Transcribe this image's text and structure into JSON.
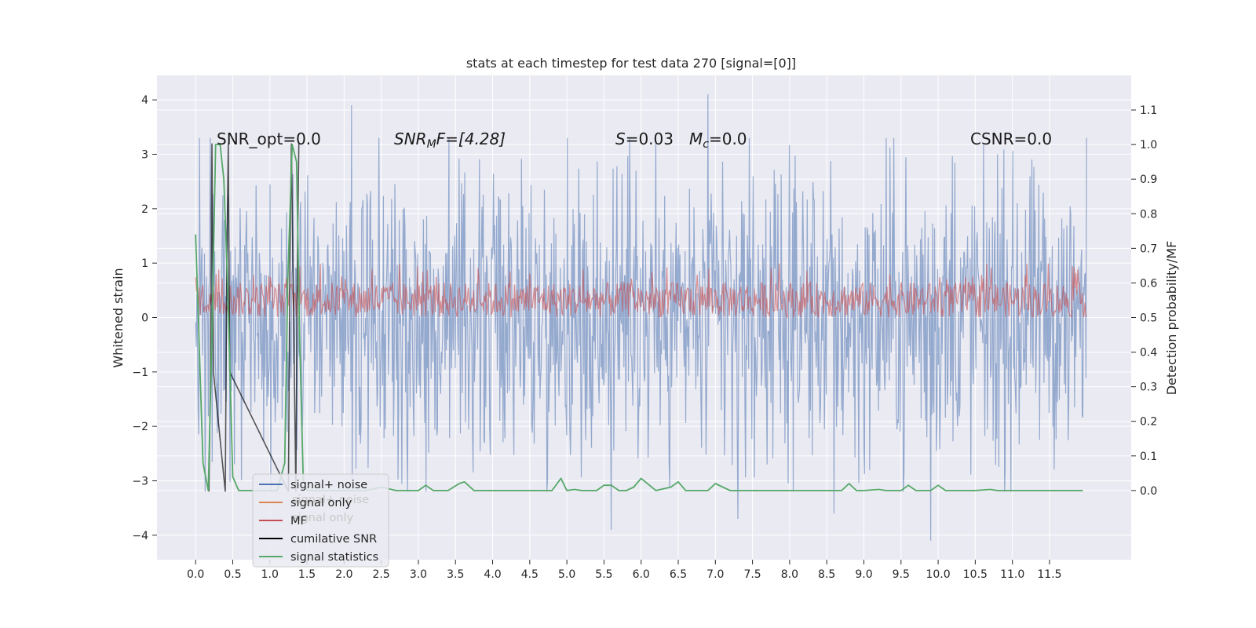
{
  "chart_data": {
    "type": "line",
    "title": "stats at each timestep for test data 270 [signal=[0]]",
    "xlabel": "",
    "ylabel": "Whitened strain",
    "ylabel_right": "Detection probability/MF",
    "xlim": [
      -0.52,
      12.6
    ],
    "ylim": [
      -4.45,
      4.45
    ],
    "ylim_right": [
      -0.2,
      1.2
    ],
    "x_ticks": [
      "0.0",
      "0.5",
      "1.0",
      "1.5",
      "2.0",
      "2.5",
      "3.0",
      "3.5",
      "4.0",
      "4.5",
      "5.0",
      "5.5",
      "6.0",
      "6.5",
      "7.0",
      "7.5",
      "8.0",
      "8.5",
      "9.0",
      "9.5",
      "10.0",
      "10.5",
      "11.0",
      "11.5"
    ],
    "y_ticks": [
      "4",
      "3",
      "2",
      "1",
      "0",
      "−1",
      "−2",
      "−3",
      "−4"
    ],
    "y_ticks_right": [
      "1.1",
      "1.0",
      "0.9",
      "0.8",
      "0.7",
      "0.6",
      "0.5",
      "0.4",
      "0.3",
      "0.2",
      "0.1",
      "0.0"
    ],
    "grid": true,
    "legend_position": "lower-left",
    "annotations": {
      "snr_opt": "SNR_opt=0.0",
      "snr_mf_sym": "SNR",
      "snr_mf_sub": "M",
      "snr_mf_tail": "F=[4.28]",
      "s_sym": "S",
      "s_val": "=0.03",
      "mc_sym": "M",
      "mc_sub": "c",
      "mc_val": "=0.0",
      "csnr": "CSNR=0.0"
    },
    "series": [
      {
        "name": "signal+ noise",
        "color": "#4c72b0",
        "axis": "left",
        "x_range": [
          0,
          12
        ],
        "envelope_upper": 2.0,
        "envelope_lower": -2.0,
        "spikes": [
          [
            0.05,
            3.3
          ],
          [
            2.1,
            3.9
          ],
          [
            6.9,
            4.1
          ],
          [
            9.9,
            -4.1
          ],
          [
            5.6,
            -3.9
          ],
          [
            8.6,
            -3.6
          ],
          [
            7.3,
            -3.7
          ]
        ]
      },
      {
        "name": "signal only",
        "color": "#dd8452",
        "axis": "left",
        "values": [
          0
        ]
      },
      {
        "name": "MF",
        "color": "#c44e52",
        "axis": "left",
        "x_range": [
          0,
          12
        ],
        "band": [
          0.0,
          0.65
        ]
      },
      {
        "name": "cumilative SNR",
        "color": "#000000",
        "axis": "left",
        "x": [
          0.18,
          0.2,
          0.22,
          0.24,
          0.4,
          0.42,
          0.44,
          0.46,
          1.25,
          1.27,
          1.29,
          1.35,
          1.37,
          1.39
        ],
        "y": [
          -3.2,
          -1.0,
          3.2,
          -1.0,
          -3.2,
          1.0,
          3.2,
          -1.0,
          -3.2,
          1.0,
          3.2,
          -3.2,
          1.0,
          3.2
        ]
      },
      {
        "name": "signal statistics",
        "color": "#55a868",
        "axis": "right",
        "x": [
          0.0,
          0.1,
          0.17,
          0.22,
          0.27,
          0.33,
          0.38,
          0.43,
          0.5,
          0.58,
          0.8,
          1.0,
          1.1,
          1.2,
          1.24,
          1.3,
          1.36,
          1.4,
          1.45,
          1.5,
          1.7,
          2.0,
          2.3,
          2.5,
          2.7,
          3.0,
          3.1,
          3.2,
          3.4,
          3.55,
          3.62,
          3.75,
          4.0,
          4.5,
          4.8,
          4.92,
          5.0,
          5.1,
          5.2,
          5.4,
          5.5,
          5.6,
          5.7,
          5.8,
          5.9,
          6.0,
          6.2,
          6.4,
          6.5,
          6.6,
          6.7,
          6.9,
          7.0,
          7.2,
          7.5,
          8.0,
          8.5,
          8.7,
          8.8,
          8.9,
          9.0,
          9.2,
          9.3,
          9.5,
          9.6,
          9.7,
          9.8,
          9.9,
          10.0,
          10.1,
          10.2,
          10.5,
          10.7,
          10.8,
          11.0,
          11.5,
          11.95
        ],
        "y": [
          0.74,
          0.08,
          0.0,
          0.45,
          1.0,
          1.0,
          0.9,
          0.6,
          0.04,
          0.0,
          0.0,
          0.0,
          0.0,
          0.08,
          0.6,
          1.0,
          0.95,
          0.45,
          0.03,
          0.0,
          0.0,
          0.0,
          0.0,
          0.01,
          0.0,
          0.0,
          0.015,
          0.0,
          0.0,
          0.02,
          0.025,
          0.0,
          0.0,
          0.0,
          0.0,
          0.035,
          0.0,
          0.003,
          0.0,
          0.0,
          0.015,
          0.015,
          0.0,
          0.0,
          0.01,
          0.035,
          0.0,
          0.01,
          0.025,
          0.0,
          0.0,
          0.0,
          0.02,
          0.0,
          0.0,
          0.0,
          0.0,
          0.0,
          0.02,
          0.0,
          0.0,
          0.003,
          0.0,
          0.0,
          0.015,
          0.0,
          0.0,
          0.0,
          0.015,
          0.0,
          0.0,
          0.0,
          0.003,
          0.0,
          0.0,
          0.0,
          0.0
        ]
      }
    ],
    "legend_ghost_labels": [
      "signal+ noise",
      "signal only"
    ]
  }
}
